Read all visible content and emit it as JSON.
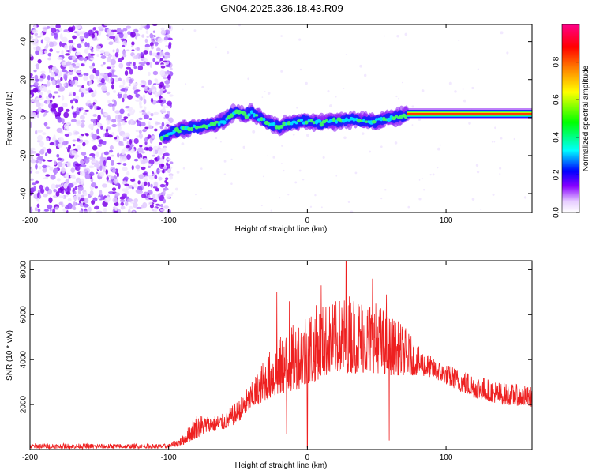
{
  "title": "GN04.2025.336.18.43.R09",
  "chart_data": [
    {
      "type": "heatmap",
      "name": "spectrogram",
      "xlabel": "Height of straight line (km)",
      "ylabel": "Frequency (Hz)",
      "xlim": [
        -200,
        162
      ],
      "ylim": [
        -50,
        49
      ],
      "xticks": [
        "-200",
        "-100",
        "0",
        "100"
      ],
      "xtick_values": [
        -200,
        -100,
        0,
        100
      ],
      "yticks": [
        "-40",
        "-20",
        "0",
        "20",
        "40"
      ],
      "ytick_values": [
        -40,
        -20,
        0,
        20,
        40
      ],
      "noise_region": [
        -200,
        -98
      ],
      "tone_track": {
        "x": [
          -105,
          -98,
          -90,
          -80,
          -70,
          -60,
          -55,
          -50,
          -45,
          -40,
          -35,
          -30,
          -25,
          -20,
          -15,
          -10,
          -5,
          0,
          10,
          20,
          30,
          40,
          50,
          60,
          70,
          80,
          100,
          120,
          140,
          160
        ],
        "y": [
          -10,
          -8,
          -6,
          -5,
          -4,
          -2,
          2,
          3,
          1,
          3,
          0,
          -2,
          -4,
          -5,
          -3,
          -3,
          -2,
          -2,
          -3,
          -2,
          -1,
          -2,
          -2,
          0,
          1,
          2,
          2,
          2,
          2,
          2
        ]
      },
      "colorbar": {
        "label": "Normalized spectral amplitude",
        "ticks": [
          "0.0",
          "0.2",
          "0.4",
          "0.6",
          "0.8"
        ],
        "tick_values": [
          0.0,
          0.2,
          0.4,
          0.6,
          0.8
        ],
        "range": [
          0,
          1
        ],
        "stops": [
          "#ffffff",
          "#e6ccff",
          "#8800ff",
          "#0000ff",
          "#00ffff",
          "#00ff00",
          "#ffff00",
          "#ff8800",
          "#ff0000",
          "#ff0088"
        ]
      }
    },
    {
      "type": "line",
      "name": "snr",
      "xlabel": "Height of straight line (km)",
      "ylabel": "SNR (10 * v/v)",
      "xlim": [
        -200,
        162
      ],
      "ylim": [
        0,
        8400
      ],
      "xticks": [
        "-200",
        "-100",
        "0",
        "100"
      ],
      "xtick_values": [
        -200,
        -100,
        0,
        100
      ],
      "yticks": [
        "2000",
        "4000",
        "6000",
        "8000"
      ],
      "ytick_values": [
        2000,
        4000,
        6000,
        8000
      ],
      "color": "#ee2020",
      "envelope": {
        "x": [
          -200,
          -150,
          -100,
          -90,
          -80,
          -70,
          -60,
          -50,
          -40,
          -30,
          -20,
          -10,
          0,
          10,
          20,
          30,
          40,
          50,
          60,
          70,
          80,
          90,
          100,
          120,
          140,
          162
        ],
        "low": [
          50,
          50,
          60,
          200,
          500,
          800,
          900,
          1200,
          1800,
          2200,
          2400,
          2600,
          2800,
          3200,
          3400,
          3400,
          3400,
          3400,
          3300,
          3300,
          3300,
          3200,
          2900,
          2300,
          2000,
          1900
        ],
        "high": [
          280,
          260,
          250,
          600,
          1600,
          1500,
          1600,
          2200,
          3000,
          4200,
          5000,
          5600,
          6400,
          6500,
          6600,
          7000,
          6800,
          6600,
          6000,
          5500,
          4600,
          4100,
          3800,
          3400,
          3000,
          2800
        ]
      },
      "spikes": [
        {
          "x": -22,
          "y": 7000
        },
        {
          "x": -13,
          "y": 6600
        },
        {
          "x": 10,
          "y": 7300
        },
        {
          "x": 28,
          "y": 8400
        },
        {
          "x": 47,
          "y": 7600
        },
        {
          "x": 57,
          "y": 6900
        }
      ],
      "dips": [
        {
          "x": -15,
          "y": 700
        },
        {
          "x": 0,
          "y": 100
        },
        {
          "x": 59,
          "y": 400
        }
      ]
    }
  ]
}
